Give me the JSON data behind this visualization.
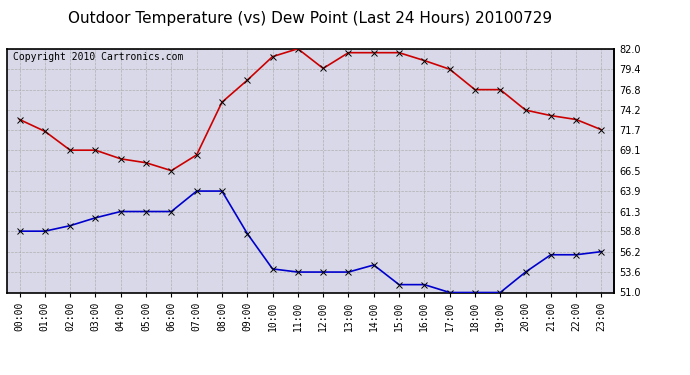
{
  "title": "Outdoor Temperature (vs) Dew Point (Last 24 Hours) 20100729",
  "copyright": "Copyright 2010 Cartronics.com",
  "hours": [
    0,
    1,
    2,
    3,
    4,
    5,
    6,
    7,
    8,
    9,
    10,
    11,
    12,
    13,
    14,
    15,
    16,
    17,
    18,
    19,
    20,
    21,
    22,
    23
  ],
  "temp": [
    73.0,
    71.5,
    69.1,
    69.1,
    68.0,
    67.5,
    66.5,
    68.5,
    75.2,
    78.0,
    81.0,
    82.0,
    79.5,
    81.5,
    81.5,
    81.5,
    80.5,
    79.4,
    76.8,
    76.8,
    74.2,
    73.5,
    73.0,
    71.7
  ],
  "dewpoint": [
    58.8,
    58.8,
    59.5,
    60.5,
    61.3,
    61.3,
    61.3,
    63.9,
    63.9,
    58.5,
    54.0,
    53.6,
    53.6,
    53.6,
    54.5,
    52.0,
    52.0,
    51.0,
    51.0,
    51.0,
    53.6,
    55.8,
    55.8,
    56.2
  ],
  "temp_color": "#cc0000",
  "dew_color": "#0000cc",
  "bg_color": "#ffffff",
  "plot_bg_color": "#d8d8e8",
  "grid_color": "#aaaaaa",
  "ylim": [
    51.0,
    82.0
  ],
  "yticks": [
    51.0,
    53.6,
    56.2,
    58.8,
    61.3,
    63.9,
    66.5,
    69.1,
    71.7,
    74.2,
    76.8,
    79.4,
    82.0
  ],
  "title_fontsize": 11,
  "tick_fontsize": 7,
  "copyright_fontsize": 7,
  "markersize": 4,
  "linewidth": 1.2
}
